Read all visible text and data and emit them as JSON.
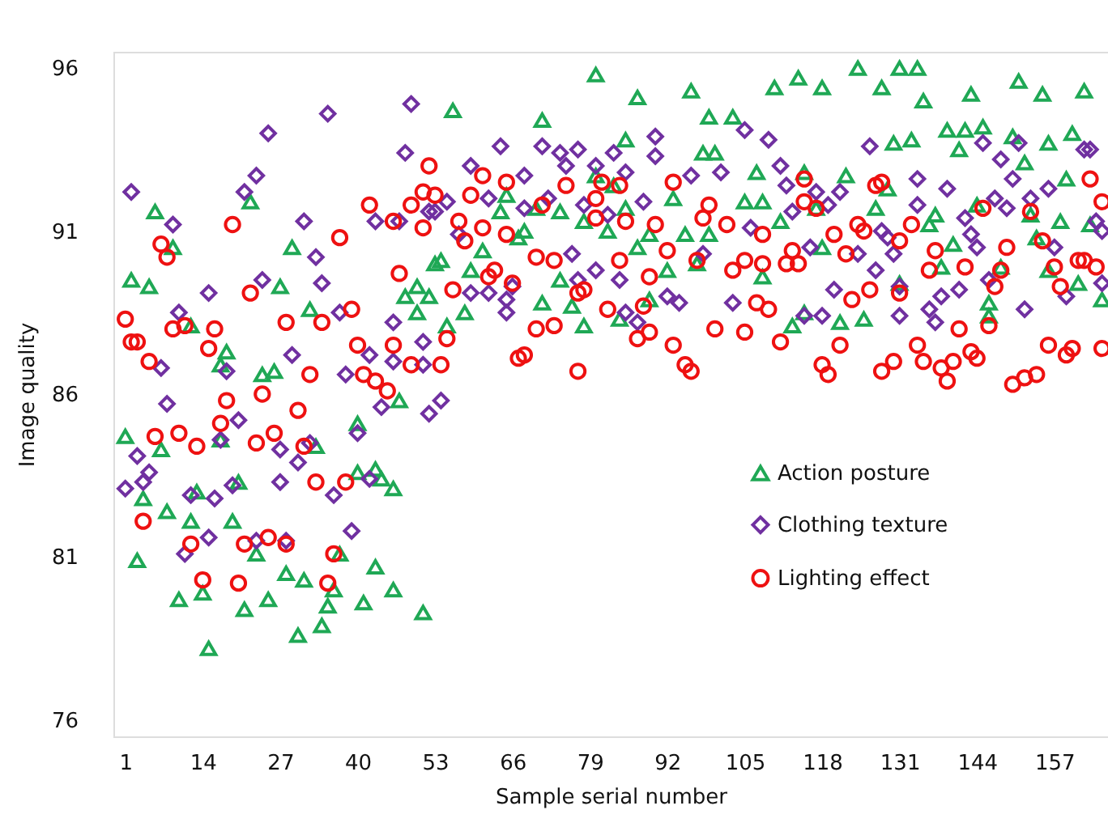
{
  "chart_data": {
    "type": "scatter",
    "xlabel": "Sample serial number",
    "ylabel": "Image quality",
    "xlim": [
      -1,
      166
    ],
    "ylim": [
      75.5,
      96.5
    ],
    "xticks": [
      1,
      14,
      27,
      40,
      53,
      66,
      79,
      92,
      105,
      118,
      131,
      144,
      157
    ],
    "yticks": [
      76,
      81,
      86,
      91,
      96
    ],
    "grid": false,
    "legend": "bottom right",
    "series": [
      {
        "name": "Action posture",
        "color": "#1fa855",
        "marker": "triangle",
        "x": [
          2,
          1,
          3,
          4,
          6,
          5,
          7,
          8,
          9,
          10,
          12,
          12,
          13,
          14,
          15,
          17,
          18,
          17,
          19,
          20,
          21,
          22,
          23,
          24,
          25,
          26,
          27,
          28,
          29,
          30,
          31,
          32,
          33,
          34,
          35,
          36,
          37,
          40,
          40,
          41,
          43,
          43,
          44,
          46,
          46,
          47,
          48,
          50,
          50,
          51,
          53,
          80,
          87,
          96,
          56,
          71,
          99,
          103,
          85,
          98,
          100,
          107,
          80,
          83,
          93,
          65,
          105,
          64,
          74,
          70,
          85,
          78,
          82,
          68,
          67,
          89,
          95,
          99,
          87,
          61,
          54,
          59,
          92,
          74,
          52,
          58,
          71,
          76,
          78,
          84,
          89,
          97,
          55,
          110,
          114,
          118,
          124,
          128,
          131,
          134,
          135,
          143,
          151,
          155,
          162,
          130,
          133,
          139,
          142,
          145,
          141,
          150,
          152,
          156,
          160,
          115,
          122,
          129,
          159,
          108,
          117,
          127,
          137,
          144,
          153,
          158,
          163,
          111,
          136,
          140,
          118,
          154,
          108,
          138,
          148,
          156,
          131,
          161,
          165,
          146,
          113,
          121,
          125,
          115,
          146
        ],
        "values": [
          89.5,
          84.7,
          80.9,
          82.8,
          91.6,
          89.3,
          84.3,
          82.4,
          90.5,
          79.7,
          88.1,
          82.1,
          83.0,
          79.9,
          78.2,
          86.9,
          87.3,
          84.6,
          82.1,
          83.3,
          79.4,
          91.9,
          81.1,
          86.6,
          79.7,
          86.7,
          89.3,
          80.5,
          90.5,
          78.6,
          80.3,
          88.6,
          84.4,
          78.9,
          79.5,
          80.0,
          81.1,
          83.6,
          85.1,
          79.6,
          83.7,
          80.7,
          83.4,
          80.0,
          83.1,
          85.8,
          89.0,
          89.3,
          88.5,
          79.3,
          90.0,
          95.8,
          95.1,
          95.3,
          94.7,
          94.4,
          94.5,
          94.5,
          93.8,
          93.4,
          93.4,
          92.8,
          92.7,
          92.4,
          92.0,
          92.1,
          91.9,
          91.6,
          91.6,
          91.7,
          91.7,
          91.3,
          91.0,
          91.0,
          90.8,
          90.9,
          90.9,
          90.9,
          90.5,
          90.4,
          90.1,
          89.8,
          89.8,
          89.5,
          89.0,
          88.5,
          88.8,
          88.7,
          88.1,
          88.3,
          88.9,
          90.0,
          88.1,
          95.4,
          95.7,
          95.4,
          96.0,
          95.4,
          96.0,
          96.0,
          95.0,
          95.2,
          95.6,
          95.2,
          95.3,
          93.7,
          93.8,
          94.1,
          94.1,
          94.2,
          93.5,
          93.9,
          93.1,
          93.7,
          94.0,
          92.8,
          92.7,
          92.3,
          92.6,
          91.9,
          91.7,
          91.7,
          91.5,
          91.8,
          91.5,
          91.3,
          91.2,
          91.3,
          91.2,
          90.6,
          90.5,
          90.8,
          89.6,
          89.9,
          89.9,
          89.8,
          89.4,
          89.4,
          88.9,
          88.8,
          88.1,
          88.2,
          88.3,
          88.5,
          88.4
        ]
      },
      {
        "name": "Clothing texture",
        "color": "#7030a0",
        "marker": "diamond",
        "x": [
          2,
          9,
          25,
          35,
          23,
          21,
          31,
          33,
          34,
          24,
          15,
          10,
          37,
          46,
          51,
          29,
          18,
          7,
          38,
          42,
          46,
          51,
          8,
          44,
          52,
          3,
          1,
          5,
          4,
          20,
          17,
          27,
          30,
          32,
          40,
          42,
          27,
          19,
          16,
          12,
          36,
          39,
          28,
          23,
          15,
          11,
          47,
          48,
          49,
          43,
          52,
          64,
          71,
          74,
          77,
          90,
          90,
          83,
          59,
          68,
          75,
          80,
          85,
          96,
          101,
          105,
          53,
          55,
          62,
          68,
          72,
          78,
          82,
          88,
          57,
          76,
          80,
          84,
          77,
          66,
          62,
          59,
          65,
          65,
          92,
          94,
          98,
          103,
          85,
          87,
          54,
          106,
          109,
          126,
          145,
          151,
          148,
          162,
          163,
          111,
          150,
          112,
          117,
          121,
          134,
          139,
          156,
          113,
          119,
          134,
          147,
          149,
          153,
          164,
          142,
          128,
          129,
          143,
          116,
          124,
          130,
          144,
          157,
          165,
          127,
          120,
          131,
          141,
          138,
          146,
          159,
          165,
          115,
          118,
          131,
          136,
          137,
          152
        ],
        "values": [
          92.2,
          91.2,
          94.0,
          94.6,
          92.7,
          92.2,
          91.3,
          90.2,
          89.4,
          89.5,
          89.1,
          88.5,
          88.5,
          88.2,
          87.6,
          87.2,
          86.7,
          86.8,
          86.6,
          87.2,
          87.0,
          86.9,
          85.7,
          85.6,
          85.4,
          84.1,
          83.1,
          83.6,
          83.3,
          85.2,
          84.6,
          84.3,
          83.9,
          84.5,
          84.8,
          83.4,
          83.3,
          83.2,
          82.8,
          82.9,
          82.9,
          81.8,
          81.5,
          81.5,
          81.6,
          81.1,
          91.3,
          93.4,
          94.9,
          91.3,
          91.6,
          93.6,
          93.6,
          93.4,
          93.5,
          93.9,
          93.3,
          93.4,
          93.0,
          92.7,
          93.0,
          93.0,
          92.8,
          92.7,
          92.8,
          94.1,
          91.6,
          91.9,
          92.0,
          91.7,
          92.0,
          91.8,
          91.5,
          91.9,
          90.9,
          90.3,
          89.8,
          89.5,
          89.5,
          89.3,
          89.1,
          89.1,
          88.9,
          88.5,
          89.0,
          88.8,
          90.3,
          88.8,
          88.5,
          88.2,
          85.8,
          91.1,
          93.8,
          93.6,
          93.7,
          93.7,
          93.2,
          93.5,
          93.5,
          93.0,
          92.6,
          92.4,
          92.2,
          92.2,
          92.6,
          92.3,
          92.3,
          91.6,
          91.8,
          91.8,
          92.0,
          91.7,
          92.0,
          91.3,
          91.4,
          91.0,
          90.8,
          90.9,
          90.5,
          90.3,
          90.3,
          90.5,
          90.5,
          91.0,
          89.8,
          89.2,
          89.3,
          89.2,
          89.0,
          89.5,
          89.0,
          89.4,
          88.4,
          88.4,
          88.4,
          88.6,
          88.2,
          88.6
        ]
      },
      {
        "name": "Lighting effect",
        "color": "#ee1111",
        "marker": "circle",
        "x": [
          1,
          2,
          3,
          5,
          7,
          8,
          9,
          11,
          16,
          15,
          19,
          22,
          28,
          34,
          37,
          39,
          40,
          32,
          18,
          24,
          30,
          6,
          10,
          13,
          17,
          23,
          26,
          31,
          33,
          38,
          4,
          12,
          21,
          25,
          28,
          36,
          14,
          20,
          35,
          42,
          46,
          47,
          49,
          51,
          52,
          51,
          46,
          49,
          41,
          43,
          45,
          53,
          61,
          59,
          65,
          57,
          61,
          58,
          65,
          71,
          75,
          80,
          81,
          84,
          80,
          85,
          93,
          90,
          99,
          98,
          102,
          70,
          73,
          62,
          63,
          66,
          56,
          84,
          92,
          97,
          89,
          77,
          78,
          103,
          82,
          88,
          55,
          54,
          70,
          73,
          67,
          68,
          77,
          87,
          89,
          93,
          95,
          96,
          100,
          105,
          107,
          115,
          127,
          128,
          115,
          117,
          163,
          165,
          145,
          153,
          108,
          124,
          125,
          133,
          120,
          131,
          155,
          105,
          108,
          112,
          113,
          114,
          122,
          137,
          149,
          161,
          162,
          164,
          136,
          142,
          148,
          157,
          158,
          147,
          126,
          131,
          109,
          123,
          141,
          146,
          111,
          121,
          134,
          156,
          160,
          118,
          119,
          128,
          130,
          135,
          138,
          140,
          139,
          143,
          144,
          150,
          152,
          154,
          159,
          165
        ],
        "values": [
          88.3,
          87.6,
          87.6,
          87.0,
          90.6,
          90.2,
          88.0,
          88.1,
          88.0,
          87.4,
          91.2,
          89.1,
          88.2,
          88.2,
          90.8,
          88.6,
          87.5,
          86.6,
          85.8,
          86.0,
          85.5,
          84.7,
          84.8,
          84.4,
          85.1,
          84.5,
          84.8,
          84.4,
          83.3,
          83.3,
          82.1,
          81.4,
          81.4,
          81.6,
          81.4,
          81.1,
          80.3,
          80.2,
          80.2,
          91.8,
          91.3,
          89.7,
          91.8,
          92.2,
          93.0,
          91.1,
          87.5,
          86.9,
          86.6,
          86.4,
          86.1,
          92.1,
          92.7,
          92.1,
          92.5,
          91.3,
          91.1,
          90.7,
          90.9,
          91.8,
          92.4,
          92.0,
          92.5,
          92.4,
          91.4,
          91.3,
          92.5,
          91.2,
          91.8,
          91.4,
          91.2,
          90.2,
          90.1,
          89.6,
          89.8,
          89.4,
          89.2,
          90.1,
          90.4,
          90.1,
          89.6,
          89.1,
          89.2,
          89.8,
          88.6,
          88.7,
          87.7,
          86.9,
          88.0,
          88.1,
          87.1,
          87.2,
          86.7,
          87.7,
          87.9,
          87.5,
          86.9,
          86.7,
          88.0,
          87.9,
          88.8,
          92.6,
          92.4,
          92.5,
          91.9,
          91.7,
          92.6,
          91.9,
          91.7,
          91.6,
          90.9,
          91.2,
          91.0,
          91.2,
          90.9,
          90.7,
          90.7,
          90.1,
          90.0,
          90.0,
          90.4,
          90.0,
          90.3,
          90.4,
          90.5,
          90.1,
          90.1,
          89.9,
          89.8,
          89.9,
          89.8,
          89.9,
          89.3,
          89.3,
          89.2,
          89.1,
          88.6,
          88.9,
          88.0,
          88.1,
          87.6,
          87.5,
          87.5,
          87.5,
          87.4,
          86.9,
          86.6,
          86.7,
          87.0,
          87.0,
          86.8,
          87.0,
          86.4,
          87.3,
          87.1,
          86.3,
          86.5,
          86.6,
          87.2,
          87.4
        ]
      }
    ]
  }
}
